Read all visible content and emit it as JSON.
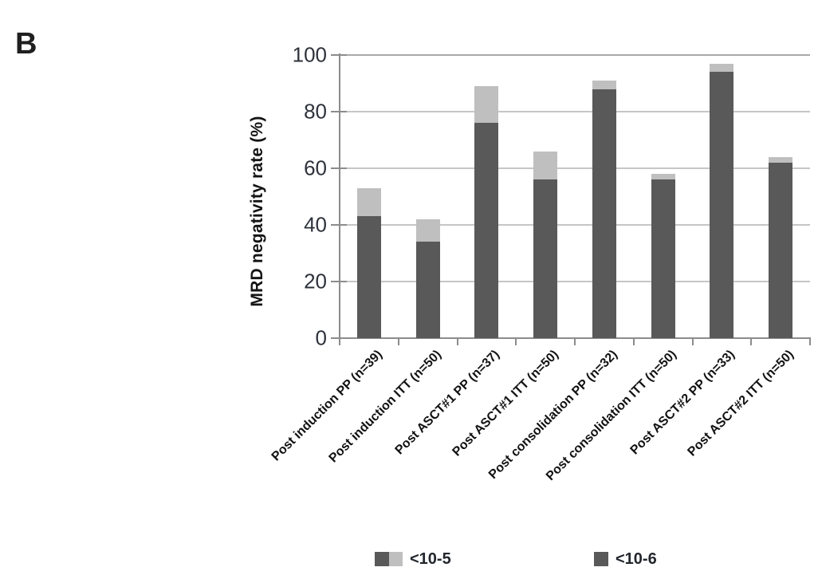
{
  "panel_label": "B",
  "chart_data": {
    "type": "bar",
    "stacked": true,
    "title": "",
    "ylabel": "MRD negativity rate (%)",
    "xlabel": "",
    "ylim": [
      0,
      100
    ],
    "yticks": [
      0,
      20,
      40,
      60,
      80,
      100
    ],
    "grid": "horizontal",
    "legend_position": "bottom",
    "categories": [
      "Post induction PP (n=39)",
      "Post induction ITT (n=50)",
      "Post ASCT#1 PP (n=37)",
      "Post ASCT#1 ITT (n=50)",
      "Post consolidation PP (n=32)",
      "Post consolidation ITT (n=50)",
      "Post ASCT#2 PP (n=33)",
      "Post ASCT#2 ITT (n=50)"
    ],
    "series": [
      {
        "name": "<10-6",
        "segment": "base",
        "color": "#595959",
        "values": [
          43,
          34,
          76,
          56,
          88,
          56,
          94,
          62
        ]
      },
      {
        "name": "<10-5",
        "segment": "cap-above-base",
        "color": "#bfbfbf",
        "values": [
          10,
          8,
          13,
          10,
          3,
          2,
          3,
          2
        ]
      }
    ],
    "bar_totals_at_10_5": [
      53,
      42,
      89,
      66,
      91,
      58,
      97,
      64
    ]
  },
  "legend": {
    "items": [
      {
        "label": "<10-5",
        "swatch_colors": [
          "#595959",
          "#bfbfbf"
        ]
      },
      {
        "label": "<10-6",
        "swatch_colors": [
          "#595959"
        ]
      }
    ]
  },
  "colors": {
    "bar_dark": "#595959",
    "bar_light": "#bfbfbf",
    "gridline": "#c6c6c6",
    "top_gridline": "#a9a9a9",
    "axis": "#8c8c8c",
    "background": "#ffffff"
  }
}
